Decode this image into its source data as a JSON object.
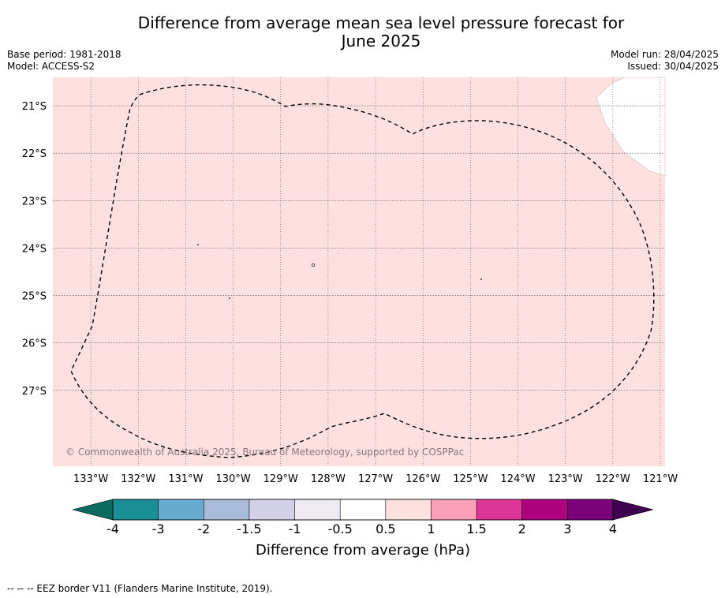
{
  "title_line1": "Difference from average mean sea level pressure forecast for",
  "title_line2": "June 2025",
  "base_period": "Base period: 1981-2018",
  "model": "Model: ACCESS-S2",
  "model_run": "Model run: 28/04/2025",
  "issued": "Issued: 30/04/2025",
  "copyright": "© Commonwealth of Australia 2025, Bureau of Meteorology, supported by COSPPac",
  "footnote": "--  --  -- EEZ border V11 (Flanders Marine Institute, 2019).",
  "map": {
    "lon_labels": [
      "133°W",
      "132°W",
      "131°W",
      "130°W",
      "129°W",
      "128°W",
      "127°W",
      "126°W",
      "125°W",
      "124°W",
      "123°W",
      "122°W",
      "121°W"
    ],
    "lat_labels": [
      "21°S",
      "22°S",
      "23°S",
      "24°S",
      "25°S",
      "26°S",
      "27°S"
    ],
    "lon_range": [
      -133.8,
      -120.9
    ],
    "lat_range": [
      -28.6,
      -20.4
    ],
    "field_color": "#fde0df",
    "field_bin": "0.5 to 1",
    "land_color": "#ffffff"
  },
  "colorbar": {
    "label": "Difference from average (hPa)",
    "ticks": [
      "-4",
      "-3",
      "-2",
      "-1.5",
      "-1",
      "-0.5",
      "0.5",
      "1",
      "1.5",
      "2",
      "3",
      "4"
    ],
    "low_extend_color": "#0b6b5e",
    "high_extend_color": "#3f004f",
    "bins": [
      {
        "range": "-4 to -3",
        "color": "#1a9096"
      },
      {
        "range": "-3 to -2",
        "color": "#67abd0"
      },
      {
        "range": "-2 to -1.5",
        "color": "#a8bcda"
      },
      {
        "range": "-1.5 to -1",
        "color": "#d1d0e6"
      },
      {
        "range": "-1 to -0.5",
        "color": "#eeeaf2"
      },
      {
        "range": "-0.5 to 0.5",
        "color": "#ffffff"
      },
      {
        "range": "0.5 to 1",
        "color": "#fde0df"
      },
      {
        "range": "1 to 1.5",
        "color": "#f99fb8"
      },
      {
        "range": "1.5 to 2",
        "color": "#dc3596"
      },
      {
        "range": "2 to 3",
        "color": "#ae017e"
      },
      {
        "range": "3 to 4",
        "color": "#7a0177"
      }
    ]
  }
}
